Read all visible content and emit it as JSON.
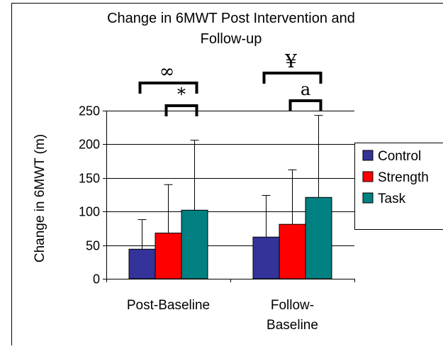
{
  "chart_data": {
    "type": "bar",
    "title_lines": [
      "Change in 6MWT Post Intervention and",
      "Follow-up"
    ],
    "xlabel": "",
    "ylabel": "Change in 6MWT (m)",
    "ylim": [
      0,
      250
    ],
    "yticks": [
      0,
      50,
      100,
      150,
      200,
      250
    ],
    "grid": true,
    "legend_position": "right",
    "categories": [
      [
        "Post-Baseline"
      ],
      [
        "Follow-",
        "Baseline"
      ]
    ],
    "series": [
      {
        "name": "Control",
        "color": "#333399",
        "values": [
          44,
          62
        ],
        "error_upper": [
          88,
          124
        ]
      },
      {
        "name": "Strength",
        "color": "#ff0000",
        "values": [
          68,
          81
        ],
        "error_upper": [
          140,
          162
        ]
      },
      {
        "name": "Task",
        "color": "#008080",
        "values": [
          102,
          121
        ],
        "error_upper": [
          206,
          243
        ]
      }
    ],
    "significance_markers": [
      {
        "symbol": "∞",
        "group": 0,
        "from_series": 0,
        "to_series": 2,
        "level": "upper"
      },
      {
        "symbol": "*",
        "group": 0,
        "from_series": 1,
        "to_series": 2,
        "level": "lower"
      },
      {
        "symbol": "¥",
        "group": 1,
        "from_series": 0,
        "to_series": 2,
        "level": "upper"
      },
      {
        "symbol": "a",
        "group": 1,
        "from_series": 1,
        "to_series": 2,
        "level": "lower"
      }
    ]
  }
}
